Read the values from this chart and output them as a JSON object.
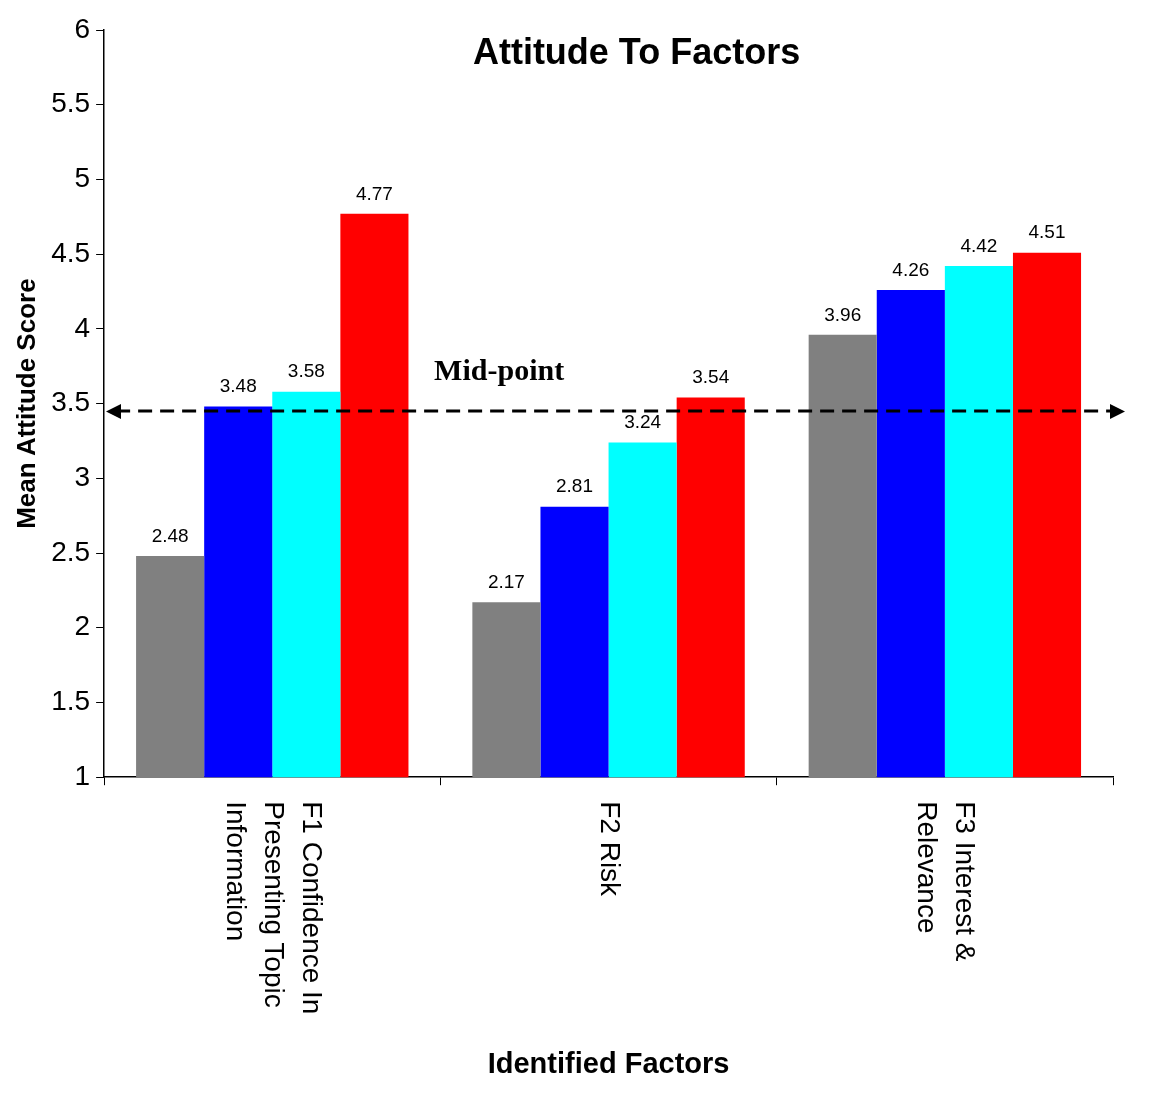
{
  "chart_data": {
    "type": "bar",
    "title": "Attitude To Factors",
    "xlabel": "Identified Factors",
    "ylabel": "Mean Attitude Score",
    "categories": [
      "F1 Confidence In Presenting Topic Information",
      "F2 Risk",
      "F3 Interest & Relevance"
    ],
    "series": [
      {
        "color": "#808080",
        "values": [
          2.48,
          2.17,
          3.96
        ]
      },
      {
        "color": "#0000ff",
        "values": [
          3.48,
          2.81,
          4.26
        ]
      },
      {
        "color": "#00ffff",
        "values": [
          3.58,
          3.24,
          4.42
        ]
      },
      {
        "color": "#ff0000",
        "values": [
          4.77,
          3.54,
          4.51
        ]
      }
    ],
    "ylim": [
      1,
      6
    ],
    "yticks": [
      1,
      1.5,
      2,
      2.5,
      3,
      3.5,
      4,
      4.5,
      5,
      5.5,
      6
    ],
    "ref_lines": [
      {
        "axis": "y",
        "value": 3.45,
        "label": "Mid-point",
        "color": "#000000",
        "line_style": "dashed"
      }
    ],
    "data_labels": true,
    "grid": false,
    "legend": false
  }
}
